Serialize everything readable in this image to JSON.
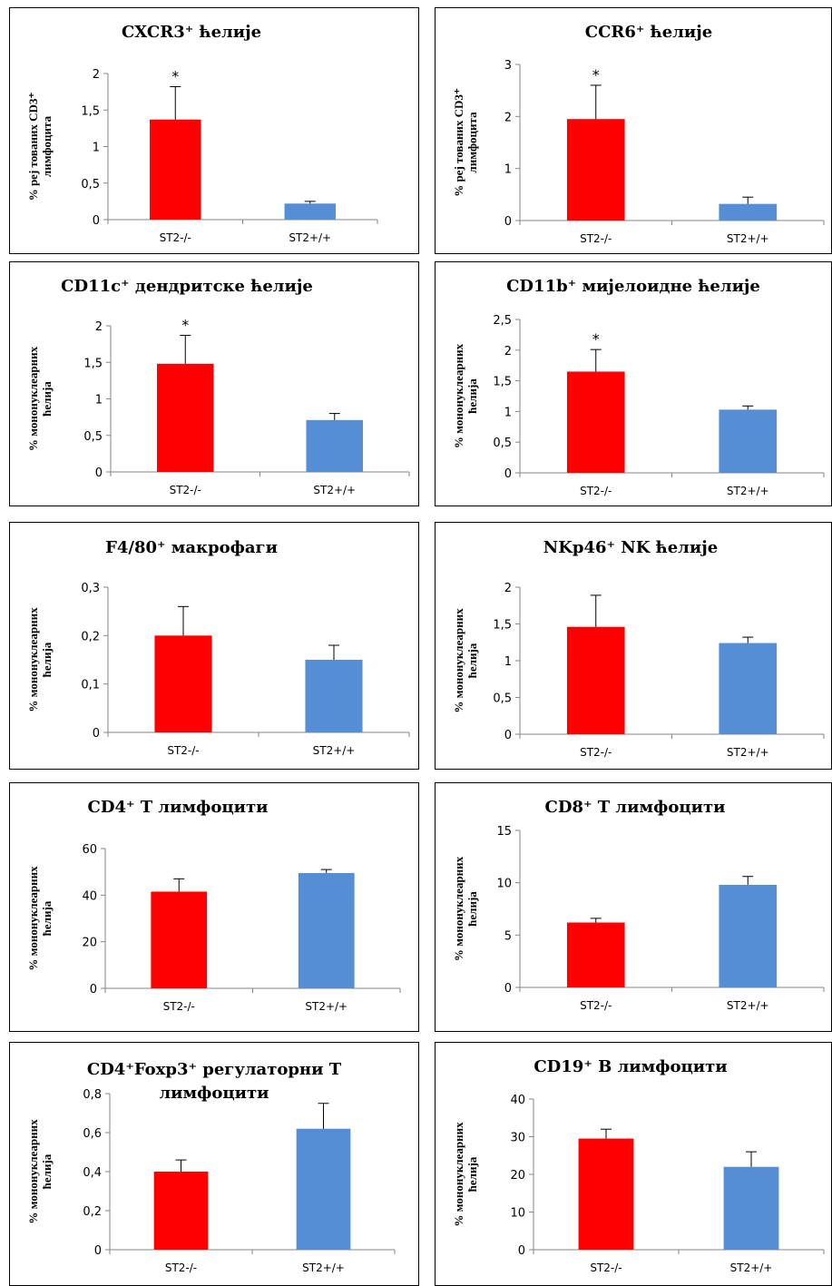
{
  "colors": {
    "ko": "#ff0000",
    "wt": "#558ed5",
    "axis": "#868686"
  },
  "chart_data": [
    {
      "type": "bar",
      "title": "CXCR3⁺ ћелије",
      "ylabel": [
        "% реј тованих CD3⁺",
        "лимфоцита"
      ],
      "categories": [
        "ST2-/-",
        "ST2+/+"
      ],
      "values": [
        1.37,
        0.22
      ],
      "errors": [
        0.45,
        0.03
      ],
      "significance": [
        "*",
        ""
      ],
      "ylim": [
        0,
        2
      ],
      "yticks": [
        "0",
        "0,5",
        "1",
        "1,5",
        "2"
      ]
    },
    {
      "type": "bar",
      "title": "CCR6⁺ ћелије",
      "ylabel": [
        "% реј тованих CD3⁺",
        "лимфоцита"
      ],
      "categories": [
        "ST2-/-",
        "ST2+/+"
      ],
      "values": [
        1.95,
        0.32
      ],
      "errors": [
        0.65,
        0.13
      ],
      "significance": [
        "*",
        ""
      ],
      "ylim": [
        0,
        3
      ],
      "yticks": [
        "0",
        "1",
        "2",
        "3"
      ]
    },
    {
      "type": "bar",
      "title": "CD11c⁺ дендритске ћелије",
      "ylabel": [
        "% мононуклеарних",
        "ћелија"
      ],
      "categories": [
        "ST2-/-",
        "ST2+/+"
      ],
      "values": [
        1.48,
        0.71
      ],
      "errors": [
        0.39,
        0.09
      ],
      "significance": [
        "*",
        ""
      ],
      "ylim": [
        0,
        2
      ],
      "yticks": [
        "0",
        "0,5",
        "1",
        "1,5",
        "2"
      ]
    },
    {
      "type": "bar",
      "title": "CD11b⁺ мијелоидне ћелије",
      "ylabel": [
        "% мононуклеарних",
        "ћелија"
      ],
      "categories": [
        "ST2-/-",
        "ST2+/+"
      ],
      "values": [
        1.65,
        1.03
      ],
      "errors": [
        0.36,
        0.06
      ],
      "significance": [
        "*",
        ""
      ],
      "ylim": [
        0,
        2.5
      ],
      "yticks": [
        "0",
        "0,5",
        "1",
        "1,5",
        "2",
        "2,5"
      ]
    },
    {
      "type": "bar",
      "title": "F4/80⁺ макрофаги",
      "ylabel": [
        "% мононуклеарних",
        "ћелија"
      ],
      "categories": [
        "ST2-/-",
        "ST2+/+"
      ],
      "values": [
        0.2,
        0.15
      ],
      "errors": [
        0.06,
        0.03
      ],
      "significance": [
        "",
        ""
      ],
      "ylim": [
        0,
        0.3
      ],
      "yticks": [
        "0",
        "0,1",
        "0,2",
        "0,3"
      ]
    },
    {
      "type": "bar",
      "title": "NKp46⁺ NK ћелије",
      "ylabel": [
        "% мононуклеарних",
        "ћелија"
      ],
      "categories": [
        "ST2-/-",
        "ST2+/+"
      ],
      "values": [
        1.46,
        1.24
      ],
      "errors": [
        0.43,
        0.08
      ],
      "significance": [
        "",
        ""
      ],
      "ylim": [
        0,
        2
      ],
      "yticks": [
        "0",
        "0,5",
        "1",
        "1,5",
        "2"
      ]
    },
    {
      "type": "bar",
      "title": "CD4⁺ Т лимфоцити",
      "ylabel": [
        "% мононуклеарних",
        "ћелија"
      ],
      "categories": [
        "ST2-/-",
        "ST2+/+"
      ],
      "values": [
        41.5,
        49.5
      ],
      "errors": [
        5.5,
        1.5
      ],
      "significance": [
        "",
        ""
      ],
      "ylim": [
        0,
        60
      ],
      "yticks": [
        "0",
        "20",
        "40",
        "60"
      ]
    },
    {
      "type": "bar",
      "title": "CD8⁺ Т лимфоцити",
      "ylabel": [
        "% мононуклеарних",
        "ћелија"
      ],
      "categories": [
        "ST2-/-",
        "ST2+/+"
      ],
      "values": [
        6.2,
        9.8
      ],
      "errors": [
        0.4,
        0.8
      ],
      "significance": [
        "",
        ""
      ],
      "ylim": [
        0,
        15
      ],
      "yticks": [
        "0",
        "5",
        "10",
        "15"
      ]
    },
    {
      "type": "bar",
      "title": "CD4⁺Foxp3⁺ регулаторни Т\nлимфоцити",
      "ylabel": [
        "% мононуклеарних",
        "ћелија"
      ],
      "categories": [
        "ST2-/-",
        "ST2+/+"
      ],
      "values": [
        0.4,
        0.62
      ],
      "errors": [
        0.06,
        0.13
      ],
      "significance": [
        "",
        ""
      ],
      "ylim": [
        0,
        0.8
      ],
      "yticks": [
        "0",
        "0,2",
        "0,4",
        "0,6",
        "0,8"
      ]
    },
    {
      "type": "bar",
      "title": "CD19⁺ В лимфоцити",
      "ylabel": [
        "% мононуклеарних",
        "ћелија"
      ],
      "categories": [
        "ST2-/-",
        "ST2+/+"
      ],
      "values": [
        29.5,
        22
      ],
      "errors": [
        2.5,
        4
      ],
      "significance": [
        "",
        ""
      ],
      "ylim": [
        0,
        40
      ],
      "yticks": [
        "0",
        "10",
        "20",
        "30",
        "40"
      ]
    }
  ]
}
